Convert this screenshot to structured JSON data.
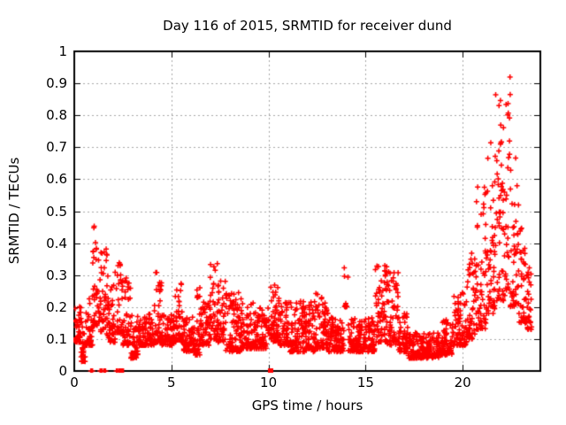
{
  "figure": {
    "background_color": "#ffffff",
    "border_color": "#000000",
    "grid_color": "#a8a8a8",
    "text_color": "#000000"
  },
  "chart_data": {
    "type": "scatter",
    "title": "Day 116 of 2015, SRMTID for receiver dund",
    "xlabel": "GPS time / hours",
    "ylabel": "SRMTID / TECUs",
    "xlim": [
      0,
      24
    ],
    "ylim": [
      0,
      1
    ],
    "xticks": [
      {
        "v": 0,
        "label": "0"
      },
      {
        "v": 5,
        "label": "5"
      },
      {
        "v": 10,
        "label": "10"
      },
      {
        "v": 15,
        "label": "15"
      },
      {
        "v": 20,
        "label": "20"
      }
    ],
    "yticks": [
      {
        "v": 0,
        "label": "0"
      },
      {
        "v": 0.1,
        "label": "0.1"
      },
      {
        "v": 0.2,
        "label": "0.2"
      },
      {
        "v": 0.3,
        "label": "0.3"
      },
      {
        "v": 0.4,
        "label": "0.4"
      },
      {
        "v": 0.5,
        "label": "0.5"
      },
      {
        "v": 0.6,
        "label": "0.6"
      },
      {
        "v": 0.7,
        "label": "0.7"
      },
      {
        "v": 0.8,
        "label": "0.8"
      },
      {
        "v": 0.9,
        "label": "0.9"
      },
      {
        "v": 1,
        "label": "1"
      }
    ],
    "grid": true,
    "grid_style": "dashed",
    "legend": false,
    "marker": "plus",
    "marker_color": "#ff0000",
    "marker_size_px": 7,
    "series_name": "SRMTID",
    "envelope_segments_hours_lo_hi": [
      [
        0.0,
        0.35,
        0.09,
        0.21
      ],
      [
        0.35,
        0.6,
        0.03,
        0.16
      ],
      [
        0.6,
        0.95,
        0.08,
        0.24
      ],
      [
        0.95,
        1.35,
        0.14,
        0.47
      ],
      [
        1.35,
        1.75,
        0.11,
        0.39
      ],
      [
        1.75,
        2.1,
        0.09,
        0.28
      ],
      [
        2.1,
        2.5,
        0.12,
        0.34
      ],
      [
        2.5,
        2.9,
        0.08,
        0.3
      ],
      [
        2.9,
        3.3,
        0.04,
        0.18
      ],
      [
        3.3,
        4.1,
        0.08,
        0.18
      ],
      [
        4.1,
        4.5,
        0.09,
        0.31
      ],
      [
        4.5,
        5.15,
        0.08,
        0.18
      ],
      [
        5.15,
        5.6,
        0.09,
        0.28
      ],
      [
        5.6,
        6.2,
        0.06,
        0.17
      ],
      [
        6.2,
        6.5,
        0.05,
        0.28
      ],
      [
        6.5,
        6.95,
        0.08,
        0.22
      ],
      [
        6.95,
        7.4,
        0.1,
        0.34
      ],
      [
        7.4,
        7.8,
        0.09,
        0.29
      ],
      [
        7.8,
        8.6,
        0.06,
        0.25
      ],
      [
        8.6,
        9.3,
        0.07,
        0.22
      ],
      [
        9.3,
        10.0,
        0.07,
        0.2
      ],
      [
        10.0,
        10.5,
        0.09,
        0.27
      ],
      [
        10.5,
        11.1,
        0.08,
        0.23
      ],
      [
        11.1,
        12.4,
        0.06,
        0.22
      ],
      [
        12.4,
        13.1,
        0.07,
        0.25
      ],
      [
        13.1,
        13.9,
        0.06,
        0.17
      ],
      [
        13.9,
        14.1,
        0.2,
        0.34,
        10
      ],
      [
        14.1,
        15.5,
        0.06,
        0.17
      ],
      [
        15.5,
        16.1,
        0.09,
        0.33
      ],
      [
        16.1,
        16.7,
        0.08,
        0.32
      ],
      [
        16.7,
        17.2,
        0.06,
        0.18
      ],
      [
        17.2,
        18.8,
        0.04,
        0.12
      ],
      [
        18.8,
        19.5,
        0.05,
        0.16
      ],
      [
        19.5,
        20.2,
        0.08,
        0.25
      ],
      [
        20.2,
        20.7,
        0.1,
        0.37
      ],
      [
        20.7,
        21.2,
        0.13,
        0.58
      ],
      [
        21.2,
        21.7,
        0.18,
        0.72
      ],
      [
        21.7,
        22.2,
        0.22,
        0.88
      ],
      [
        22.2,
        22.45,
        0.25,
        0.98
      ],
      [
        22.45,
        22.9,
        0.2,
        0.68
      ],
      [
        22.9,
        23.3,
        0.15,
        0.46
      ],
      [
        23.3,
        23.55,
        0.13,
        0.34
      ]
    ],
    "zero_value_points_hours": [
      0.85,
      0.88,
      0.94,
      1.33,
      1.36,
      1.42,
      1.52,
      1.55,
      1.61,
      2.17,
      2.2,
      2.28,
      2.31,
      2.4
    ],
    "zero_value_clusters_hours": [
      2.43,
      10.11
    ],
    "points_per_hour": 110,
    "low_bias_exponent": 1.9,
    "seed": 116
  }
}
